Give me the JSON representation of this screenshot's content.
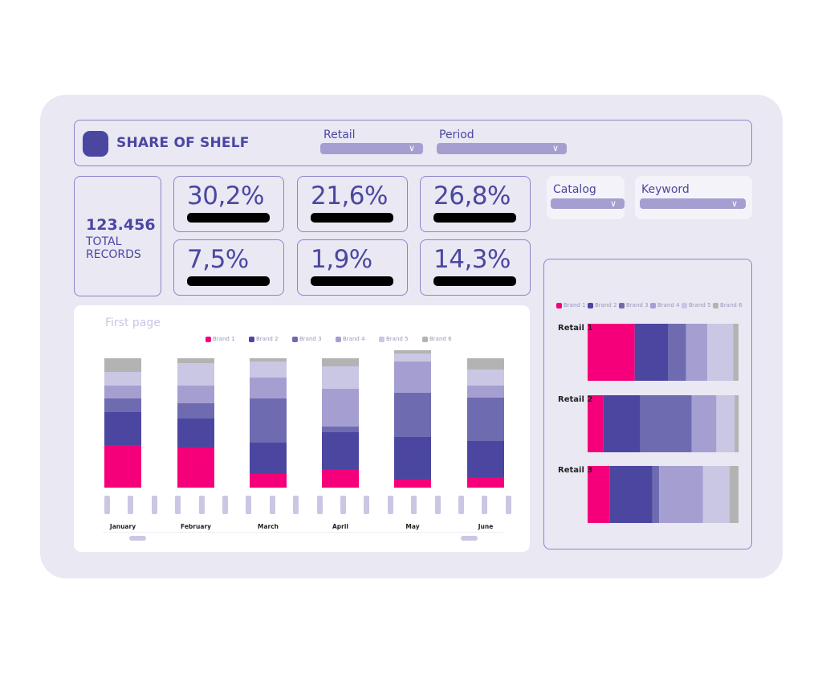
{
  "header": {
    "title": "SHARE OF SHELF",
    "logo_icon": "app-logo-icon"
  },
  "filters": {
    "retail": {
      "label": "Retail",
      "value": ""
    },
    "period": {
      "label": "Period",
      "value": ""
    },
    "catalog": {
      "label": "Catalog",
      "value": ""
    },
    "keyword": {
      "label": "Keyword",
      "value": ""
    }
  },
  "total": {
    "value": "123.456",
    "label_line1": "TOTAL",
    "label_line2": "RECORDS"
  },
  "kpis": [
    {
      "value": "30,2%"
    },
    {
      "value": "21,6%"
    },
    {
      "value": "26,8%"
    },
    {
      "value": "7,5%"
    },
    {
      "value": "1,9%"
    },
    {
      "value": "14,3%"
    }
  ],
  "colors": {
    "accent": "#4b47a0",
    "brand_1": "#f5007a",
    "brand_2": "#4b47a0",
    "brand_3": "#6f6bb0",
    "brand_4": "#a59fd1",
    "brand_5": "#c9c7e3",
    "brand_6": "#b3b3b3",
    "panel": "#e9e8f3"
  },
  "chart_data": [
    {
      "type": "bar",
      "stacked": true,
      "title": "First page",
      "legend": "top",
      "categories": [
        "January",
        "February",
        "March",
        "April",
        "May",
        "June"
      ],
      "series": [
        {
          "name": "Brand 1",
          "values": [
            53,
            50,
            17,
            23,
            10,
            13
          ]
        },
        {
          "name": "Brand 2",
          "values": [
            41,
            36,
            39,
            46,
            53,
            45
          ]
        },
        {
          "name": "Brand 3",
          "values": [
            17,
            19,
            55,
            7,
            55,
            54
          ]
        },
        {
          "name": "Brand 4",
          "values": [
            16,
            22,
            26,
            47,
            39,
            15
          ]
        },
        {
          "name": "Brand 5",
          "values": [
            17,
            28,
            20,
            28,
            10,
            20
          ]
        },
        {
          "name": "Brand 6",
          "values": [
            17,
            6,
            4,
            10,
            4,
            14
          ]
        }
      ]
    },
    {
      "type": "bar",
      "orientation": "horizontal",
      "stacked": true,
      "percent": true,
      "legend": "top",
      "categories": [
        "Retail 1",
        "Retail 2",
        "Retail 3"
      ],
      "series": [
        {
          "name": "Brand 1",
          "values": [
            31.2,
            10.5,
            14.5
          ]
        },
        {
          "name": "Brand 2",
          "values": [
            22.2,
            24.3,
            28.5
          ]
        },
        {
          "name": "Brand 3",
          "values": [
            11.9,
            34.2,
            4.4
          ]
        },
        {
          "name": "Brand 4",
          "values": [
            14.0,
            16.3,
            29.1
          ]
        },
        {
          "name": "Brand 5",
          "values": [
            17.2,
            12.1,
            17.6
          ]
        },
        {
          "name": "Brand 6",
          "values": [
            3.5,
            2.7,
            5.9
          ]
        }
      ]
    }
  ]
}
